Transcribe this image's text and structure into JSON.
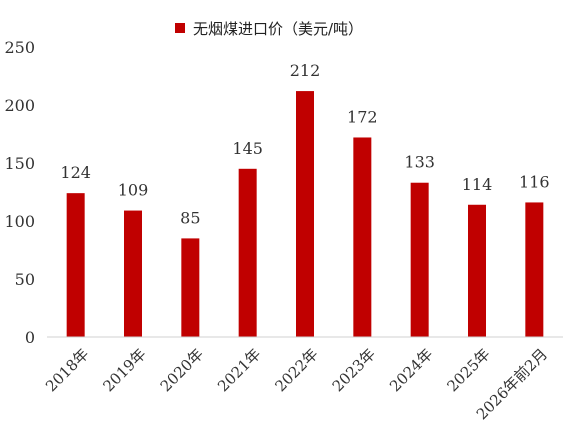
{
  "chart_data": {
    "type": "bar",
    "title": "",
    "xlabel": "",
    "ylabel": "",
    "categories": [
      "2018年",
      "2019年",
      "2020年",
      "2021年",
      "2022年",
      "2023年",
      "2024年",
      "2025年",
      "2026年前2月"
    ],
    "series": [
      {
        "name": "无烟煤进口价（美元/吨）",
        "values": [
          124,
          109,
          85,
          145,
          212,
          172,
          133,
          114,
          116
        ],
        "color": "#C00000"
      }
    ],
    "ylim": [
      0,
      250
    ],
    "yticks": [
      0,
      50,
      100,
      150,
      200,
      250
    ],
    "grid": false,
    "legend_position": "top-center",
    "data_labels": true
  }
}
